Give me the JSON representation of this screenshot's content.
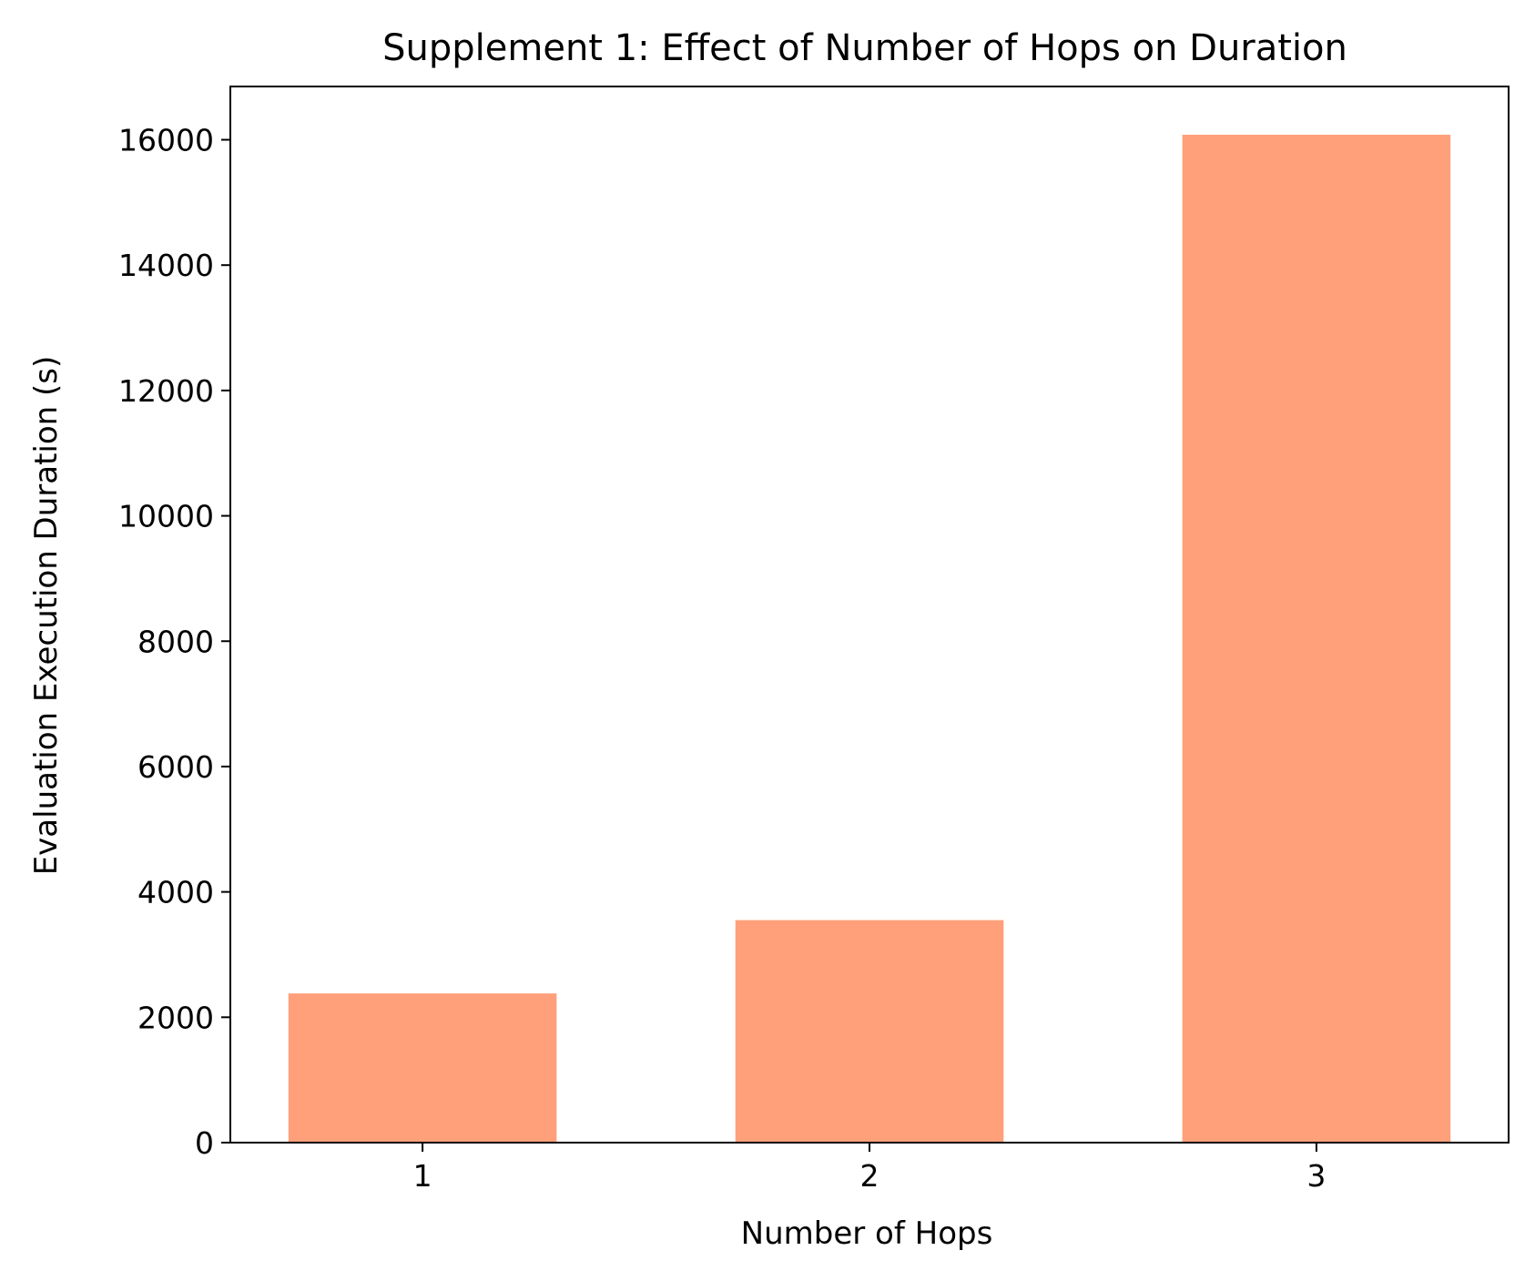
{
  "chart_data": {
    "type": "bar",
    "title": "Supplement 1: Effect of Number of Hops on Duration",
    "xlabel": "Number of Hops",
    "ylabel": "Evaluation Execution Duration (s)",
    "categories": [
      "1",
      "2",
      "3"
    ],
    "values": [
      2380,
      3550,
      16080
    ],
    "ylim": [
      0,
      16850
    ],
    "yticks": [
      0,
      2000,
      4000,
      6000,
      8000,
      10000,
      12000,
      14000,
      16000
    ],
    "grid": false,
    "bar_color": "#ffa07a",
    "axis_color": "#000000"
  }
}
